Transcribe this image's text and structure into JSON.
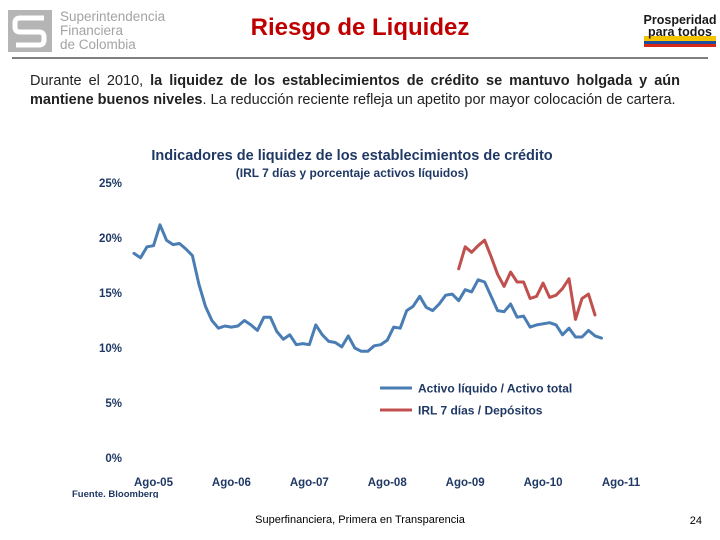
{
  "header": {
    "org_line1": "Superintendencia",
    "org_line2": "Financiera",
    "org_line3": "de Colombia",
    "title": "Riesgo de Liquidez",
    "brand_line1": "Prosperidad",
    "brand_line2": "para todos"
  },
  "intro": {
    "lead": "Durante el 2010,",
    "bold": "la liquidez de los establecimientos de crédito se mantuvo holgada y aún mantiene buenos niveles",
    "rest": ". La reducción reciente refleja un apetito por mayor colocación de cartera."
  },
  "chart_data": {
    "type": "line",
    "title": "Indicadores de liquidez de los establecimientos de crédito",
    "subtitle": "(IRL 7 días y porcentaje activos líquidos)",
    "xlabel": "",
    "ylabel": "",
    "ylim": [
      0,
      25
    ],
    "yticks": [
      0,
      5,
      10,
      15,
      20,
      25
    ],
    "ytick_labels": [
      "0%",
      "5%",
      "10%",
      "15%",
      "20%",
      "25%"
    ],
    "x_start_index": 0,
    "x_end_index": 73,
    "xtick_positions": [
      3,
      15,
      27,
      39,
      51,
      63,
      75
    ],
    "xtick_labels": [
      "Ago-05",
      "Ago-06",
      "Ago-07",
      "Ago-08",
      "Ago-09",
      "Ago-10",
      "Ago-11"
    ],
    "source": "Fuente. Bloomberg",
    "legend_position": "bottom-right",
    "series": [
      {
        "name": "Activo líquido / Activo total",
        "color": "#4a7db3",
        "start_index": 0,
        "values": [
          18.6,
          18.2,
          19.2,
          19.3,
          21.2,
          19.8,
          19.4,
          19.5,
          19.0,
          18.4,
          15.8,
          13.8,
          12.5,
          11.8,
          12.0,
          11.9,
          12.0,
          12.5,
          12.1,
          11.6,
          12.8,
          12.8,
          11.5,
          10.8,
          11.2,
          10.3,
          10.4,
          10.3,
          12.1,
          11.2,
          10.6,
          10.5,
          10.1,
          11.1,
          10.0,
          9.7,
          9.7,
          10.2,
          10.3,
          10.7,
          11.9,
          11.8,
          13.4,
          13.8,
          14.7,
          13.7,
          13.4,
          14.0,
          14.8,
          14.9,
          14.3,
          15.3,
          15.1,
          16.2,
          16.0,
          14.7,
          13.4,
          13.3,
          14.0,
          12.8,
          12.9,
          11.9,
          12.1,
          12.2,
          12.3,
          12.1,
          11.2,
          11.8,
          11.0,
          11.0,
          11.6,
          11.1,
          10.9
        ]
      },
      {
        "name": "IRL 7 días / Depósitos",
        "color": "#c0504d",
        "start_index": 50,
        "values": [
          17.2,
          19.2,
          18.7,
          19.3,
          19.8,
          18.3,
          16.7,
          15.6,
          16.9,
          16.0,
          16.0,
          14.5,
          14.7,
          15.9,
          14.6,
          14.8,
          15.4,
          16.3,
          12.6,
          14.5,
          14.9,
          13.0
        ]
      }
    ]
  },
  "footer": {
    "text": "Superfinanciera, Primera en Transparencia",
    "page": "24"
  }
}
